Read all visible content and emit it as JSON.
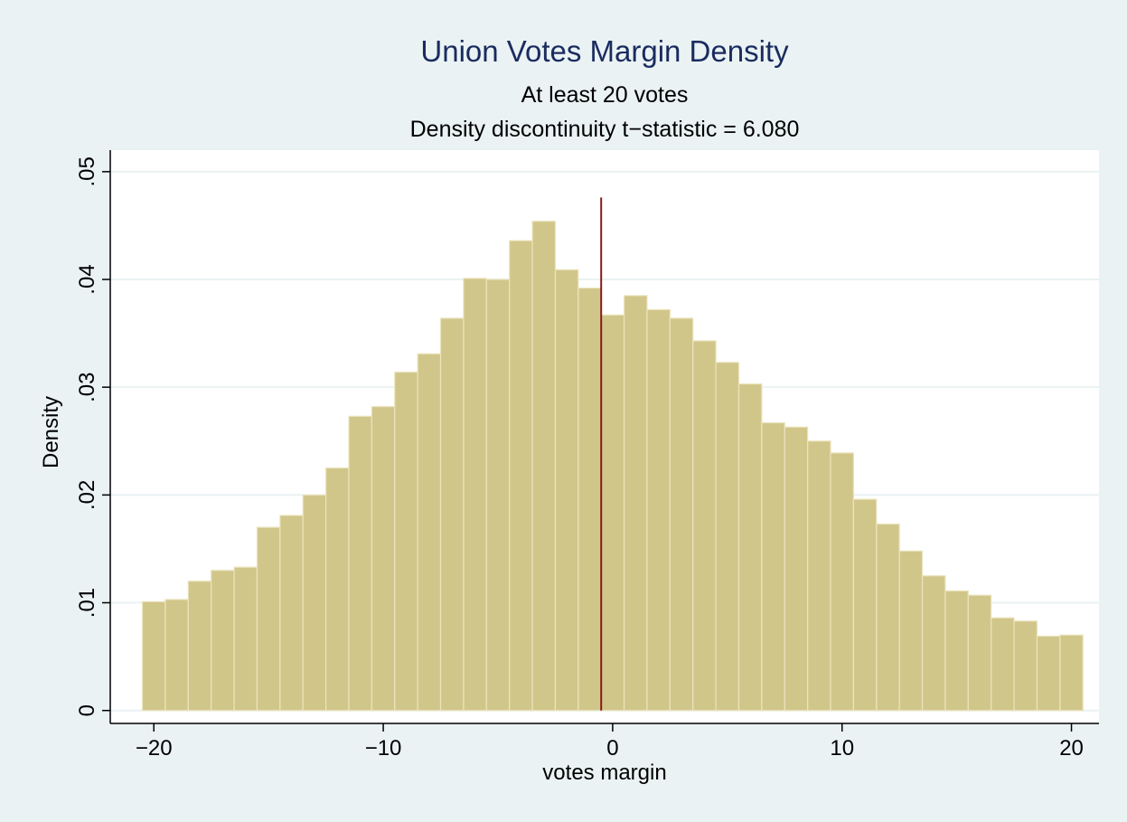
{
  "chart_data": {
    "type": "histogram",
    "title": "Union Votes Margin Density",
    "subtitle": [
      "At least 20 votes",
      "Density discontinuity t−statistic = 6.080"
    ],
    "x_label": "votes margin",
    "y_label": "Density",
    "bins": [
      -20.5,
      -19.5,
      -18.5,
      -17.5,
      -16.5,
      -15.5,
      -14.5,
      -13.5,
      -12.5,
      -11.5,
      -10.5,
      -9.5,
      -8.5,
      -7.5,
      -6.5,
      -5.5,
      -4.5,
      -3.5,
      -2.5,
      -1.5,
      -0.5,
      0.5,
      1.5,
      2.5,
      3.5,
      4.5,
      5.5,
      6.5,
      7.5,
      8.5,
      9.5,
      10.5,
      11.5,
      12.5,
      13.5,
      14.5,
      15.5,
      16.5,
      17.5,
      18.5,
      19.5,
      20.5
    ],
    "values": [
      0.0101,
      0.0103,
      0.012,
      0.013,
      0.0133,
      0.017,
      0.0181,
      0.02,
      0.0225,
      0.0273,
      0.0282,
      0.0314,
      0.0331,
      0.0364,
      0.0401,
      0.04,
      0.0436,
      0.0454,
      0.0409,
      0.0392,
      0.0367,
      0.0385,
      0.0372,
      0.0364,
      0.0343,
      0.0323,
      0.0303,
      0.0267,
      0.0263,
      0.025,
      0.0239,
      0.0196,
      0.0173,
      0.0148,
      0.0125,
      0.0111,
      0.0107,
      0.0086,
      0.0083,
      0.0069,
      0.007
    ],
    "color": "#d1c68a",
    "cutoff": {
      "x": -0.5,
      "top": 0.0476,
      "color": "#8b1a1a"
    },
    "xlim": [
      -21.9,
      21.2
    ],
    "xticks": [
      {
        "value": -20,
        "label": "−20"
      },
      {
        "value": -10,
        "label": "−10"
      },
      0,
      10,
      20
    ],
    "ylim": [
      -0.0012,
      0.052
    ],
    "yticks": [
      0,
      {
        "value": 0.01,
        "label": ".01"
      },
      {
        "value": 0.02,
        "label": ".02"
      },
      {
        "value": 0.03,
        "label": ".03"
      },
      {
        "value": 0.04,
        "label": ".04"
      },
      {
        "value": 0.05,
        "label": ".05"
      }
    ],
    "grid": true
  }
}
